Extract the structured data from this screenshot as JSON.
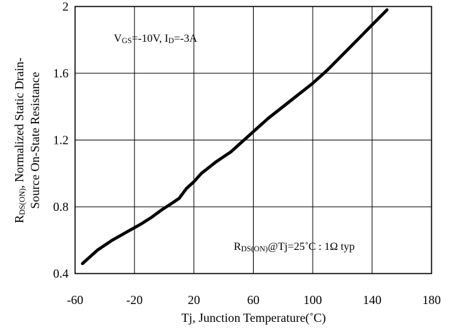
{
  "chart_data": {
    "type": "line",
    "xlabel": "Tj, Junction Temperature(˚C)",
    "ylabel_line1": "RDS(ON), Normalized Static Drain-",
    "ylabel_line2": "Source On-State Resistance",
    "ylabel_main_R": "R",
    "ylabel_main_sub": "DS(ON)",
    "ylabel_main_rest": ", Normalized Static Drain-",
    "xlim": [
      -60,
      180
    ],
    "ylim": [
      0.4,
      2.0
    ],
    "xticks": [
      -60,
      -20,
      20,
      60,
      100,
      140,
      180
    ],
    "yticks": [
      0.4,
      0.8,
      1.2,
      1.6,
      2.0
    ],
    "ytick_labels": [
      "0.4",
      "0.8",
      "1.2",
      "1.6",
      "2"
    ],
    "grid": true,
    "annotations": {
      "top": {
        "V": "V",
        "GS": "GS",
        "mid": "=-10V, I",
        "D": "D",
        "end": "=-3A"
      },
      "bottom": {
        "R": "R",
        "sub": "DS(ON)",
        "rest": "@Tj=25˚C : 1Ω  typ"
      }
    },
    "series": [
      {
        "x": [
          -55,
          -45,
          -35,
          -25,
          -15,
          -8,
          -2,
          5,
          10,
          15,
          20,
          25,
          30,
          35,
          40,
          45,
          50,
          55,
          60,
          70,
          80,
          90,
          100,
          110,
          120,
          130,
          140,
          150
        ],
        "y": [
          0.46,
          0.54,
          0.6,
          0.65,
          0.7,
          0.74,
          0.78,
          0.82,
          0.85,
          0.91,
          0.95,
          1.0,
          1.035,
          1.07,
          1.1,
          1.13,
          1.17,
          1.21,
          1.25,
          1.33,
          1.4,
          1.47,
          1.54,
          1.62,
          1.71,
          1.8,
          1.89,
          1.98
        ]
      }
    ]
  }
}
